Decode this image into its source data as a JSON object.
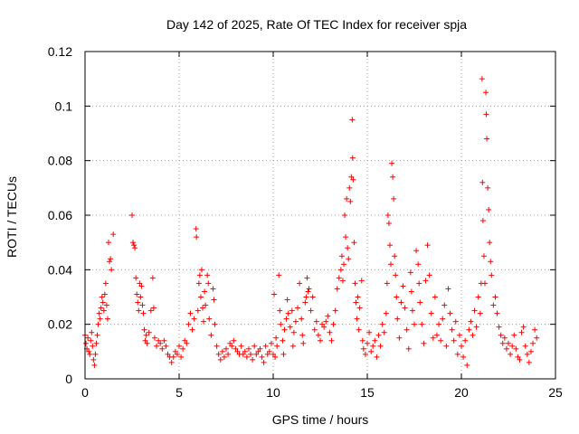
{
  "chart_data": {
    "type": "scatter",
    "title": "Day 142 of 2025, Rate Of TEC Index for receiver spja",
    "xlabel": "GPS time / hours",
    "ylabel": "ROTI / TECUs",
    "xlim": [
      0,
      25
    ],
    "ylim": [
      0,
      0.12
    ],
    "xticks": [
      0,
      5,
      10,
      15,
      20,
      25
    ],
    "xtick_labels": [
      "0",
      "5",
      "10",
      "15",
      "20",
      "25"
    ],
    "yticks": [
      0,
      0.02,
      0.04,
      0.06,
      0.08,
      0.1,
      0.12
    ],
    "ytick_labels": [
      "0",
      "0.02",
      "0.04",
      "0.06",
      "0.08",
      "0.1",
      "0.12"
    ],
    "grid": true,
    "marker": "+",
    "color": "#ff0000",
    "series": [
      {
        "name": "ROTI",
        "points": [
          [
            0.0,
            0.016
          ],
          [
            0.05,
            0.013
          ],
          [
            0.1,
            0.011
          ],
          [
            0.15,
            0.015
          ],
          [
            0.2,
            0.01
          ],
          [
            0.25,
            0.009
          ],
          [
            0.3,
            0.014
          ],
          [
            0.35,
            0.017
          ],
          [
            0.4,
            0.012
          ],
          [
            0.45,
            0.007
          ],
          [
            0.5,
            0.005
          ],
          [
            0.55,
            0.009
          ],
          [
            0.6,
            0.013
          ],
          [
            0.65,
            0.016
          ],
          [
            0.7,
            0.02
          ],
          [
            0.75,
            0.024
          ],
          [
            0.8,
            0.022
          ],
          [
            0.85,
            0.026
          ],
          [
            0.9,
            0.03
          ],
          [
            0.95,
            0.028
          ],
          [
            1.0,
            0.025
          ],
          [
            1.05,
            0.031
          ],
          [
            1.1,
            0.035
          ],
          [
            1.15,
            0.027
          ],
          [
            1.2,
            0.022
          ],
          [
            1.25,
            0.05
          ],
          [
            1.3,
            0.043
          ],
          [
            1.35,
            0.044
          ],
          [
            1.4,
            0.04
          ],
          [
            1.5,
            0.053
          ],
          [
            2.5,
            0.06
          ],
          [
            2.55,
            0.05
          ],
          [
            2.6,
            0.049
          ],
          [
            2.65,
            0.048
          ],
          [
            2.7,
            0.037
          ],
          [
            2.75,
            0.031
          ],
          [
            2.8,
            0.028
          ],
          [
            2.85,
            0.025
          ],
          [
            2.9,
            0.035
          ],
          [
            2.95,
            0.03
          ],
          [
            3.0,
            0.034
          ],
          [
            3.05,
            0.027
          ],
          [
            3.1,
            0.024
          ],
          [
            3.15,
            0.018
          ],
          [
            3.2,
            0.014
          ],
          [
            3.25,
            0.016
          ],
          [
            3.3,
            0.013
          ],
          [
            3.4,
            0.017
          ],
          [
            3.5,
            0.025
          ],
          [
            3.6,
            0.037
          ],
          [
            3.65,
            0.026
          ],
          [
            3.7,
            0.015
          ],
          [
            3.8,
            0.012
          ],
          [
            3.9,
            0.014
          ],
          [
            4.0,
            0.013
          ],
          [
            4.1,
            0.011
          ],
          [
            4.2,
            0.014
          ],
          [
            4.3,
            0.012
          ],
          [
            4.4,
            0.009
          ],
          [
            4.5,
            0.008
          ],
          [
            4.6,
            0.006
          ],
          [
            4.7,
            0.008
          ],
          [
            4.8,
            0.01
          ],
          [
            4.9,
            0.009
          ],
          [
            5.0,
            0.012
          ],
          [
            5.1,
            0.008
          ],
          [
            5.2,
            0.011
          ],
          [
            5.3,
            0.014
          ],
          [
            5.4,
            0.013
          ],
          [
            5.5,
            0.02
          ],
          [
            5.6,
            0.024
          ],
          [
            5.7,
            0.018
          ],
          [
            5.8,
            0.022
          ],
          [
            5.9,
            0.055
          ],
          [
            5.92,
            0.052
          ],
          [
            6.0,
            0.025
          ],
          [
            6.05,
            0.035
          ],
          [
            6.1,
            0.038
          ],
          [
            6.15,
            0.03
          ],
          [
            6.2,
            0.04
          ],
          [
            6.25,
            0.026
          ],
          [
            6.3,
            0.021
          ],
          [
            6.35,
            0.032
          ],
          [
            6.4,
            0.027
          ],
          [
            6.5,
            0.038
          ],
          [
            6.55,
            0.035
          ],
          [
            6.6,
            0.022
          ],
          [
            6.7,
            0.016
          ],
          [
            6.8,
            0.033
          ],
          [
            6.85,
            0.029
          ],
          [
            6.9,
            0.02
          ],
          [
            7.0,
            0.012
          ],
          [
            7.1,
            0.009
          ],
          [
            7.2,
            0.007
          ],
          [
            7.3,
            0.01
          ],
          [
            7.4,
            0.008
          ],
          [
            7.5,
            0.011
          ],
          [
            7.6,
            0.009
          ],
          [
            7.7,
            0.013
          ],
          [
            7.8,
            0.012
          ],
          [
            7.9,
            0.014
          ],
          [
            8.0,
            0.011
          ],
          [
            8.1,
            0.01
          ],
          [
            8.2,
            0.009
          ],
          [
            8.3,
            0.012
          ],
          [
            8.4,
            0.009
          ],
          [
            8.5,
            0.01
          ],
          [
            8.6,
            0.008
          ],
          [
            8.7,
            0.011
          ],
          [
            8.8,
            0.009
          ],
          [
            8.9,
            0.007
          ],
          [
            9.0,
            0.012
          ],
          [
            9.1,
            0.009
          ],
          [
            9.2,
            0.01
          ],
          [
            9.3,
            0.011
          ],
          [
            9.4,
            0.008
          ],
          [
            9.5,
            0.006
          ],
          [
            9.6,
            0.012
          ],
          [
            9.7,
            0.009
          ],
          [
            9.8,
            0.01
          ],
          [
            9.9,
            0.013
          ],
          [
            10.0,
            0.009
          ],
          [
            10.05,
            0.031
          ],
          [
            10.1,
            0.008
          ],
          [
            10.15,
            0.015
          ],
          [
            10.2,
            0.012
          ],
          [
            10.3,
            0.038
          ],
          [
            10.35,
            0.025
          ],
          [
            10.4,
            0.02
          ],
          [
            10.5,
            0.014
          ],
          [
            10.55,
            0.009
          ],
          [
            10.6,
            0.018
          ],
          [
            10.7,
            0.022
          ],
          [
            10.75,
            0.029
          ],
          [
            10.8,
            0.024
          ],
          [
            10.9,
            0.019
          ],
          [
            11.0,
            0.025
          ],
          [
            11.05,
            0.012
          ],
          [
            11.1,
            0.017
          ],
          [
            11.2,
            0.021
          ],
          [
            11.3,
            0.026
          ],
          [
            11.4,
            0.035
          ],
          [
            11.5,
            0.022
          ],
          [
            11.55,
            0.016
          ],
          [
            11.6,
            0.013
          ],
          [
            11.7,
            0.028
          ],
          [
            11.75,
            0.03
          ],
          [
            11.8,
            0.037
          ],
          [
            11.85,
            0.032
          ],
          [
            11.9,
            0.033
          ],
          [
            12.0,
            0.025
          ],
          [
            12.1,
            0.03
          ],
          [
            12.2,
            0.018
          ],
          [
            12.3,
            0.021
          ],
          [
            12.4,
            0.016
          ],
          [
            12.5,
            0.014
          ],
          [
            12.6,
            0.02
          ],
          [
            12.7,
            0.019
          ],
          [
            12.8,
            0.021
          ],
          [
            12.9,
            0.023
          ],
          [
            13.0,
            0.017
          ],
          [
            13.1,
            0.014
          ],
          [
            13.2,
            0.02
          ],
          [
            13.3,
            0.025
          ],
          [
            13.4,
            0.033
          ],
          [
            13.5,
            0.037
          ],
          [
            13.6,
            0.04
          ],
          [
            13.65,
            0.045
          ],
          [
            13.7,
            0.036
          ],
          [
            13.75,
            0.042
          ],
          [
            13.8,
            0.06
          ],
          [
            13.85,
            0.052
          ],
          [
            13.9,
            0.066
          ],
          [
            13.95,
            0.048
          ],
          [
            14.0,
            0.044
          ],
          [
            14.05,
            0.07
          ],
          [
            14.1,
            0.065
          ],
          [
            14.15,
            0.074
          ],
          [
            14.2,
            0.095
          ],
          [
            14.22,
            0.081
          ],
          [
            14.25,
            0.073
          ],
          [
            14.3,
            0.05
          ],
          [
            14.35,
            0.035
          ],
          [
            14.4,
            0.028
          ],
          [
            14.45,
            0.022
          ],
          [
            14.5,
            0.03
          ],
          [
            14.55,
            0.018
          ],
          [
            14.6,
            0.026
          ],
          [
            14.7,
            0.036
          ],
          [
            14.75,
            0.014
          ],
          [
            14.8,
            0.011
          ],
          [
            14.9,
            0.009
          ],
          [
            15.0,
            0.013
          ],
          [
            15.1,
            0.017
          ],
          [
            15.2,
            0.01
          ],
          [
            15.3,
            0.012
          ],
          [
            15.4,
            0.014
          ],
          [
            15.5,
            0.008
          ],
          [
            15.6,
            0.016
          ],
          [
            15.7,
            0.012
          ],
          [
            15.8,
            0.02
          ],
          [
            15.9,
            0.017
          ],
          [
            16.0,
            0.024
          ],
          [
            16.05,
            0.035
          ],
          [
            16.1,
            0.06
          ],
          [
            16.15,
            0.057
          ],
          [
            16.2,
            0.049
          ],
          [
            16.25,
            0.042
          ],
          [
            16.3,
            0.079
          ],
          [
            16.35,
            0.074
          ],
          [
            16.4,
            0.066
          ],
          [
            16.45,
            0.045
          ],
          [
            16.5,
            0.038
          ],
          [
            16.55,
            0.03
          ],
          [
            16.6,
            0.022
          ],
          [
            16.7,
            0.015
          ],
          [
            16.8,
            0.028
          ],
          [
            16.9,
            0.034
          ],
          [
            17.0,
            0.026
          ],
          [
            17.1,
            0.018
          ],
          [
            17.2,
            0.011
          ],
          [
            17.3,
            0.039
          ],
          [
            17.35,
            0.032
          ],
          [
            17.4,
            0.025
          ],
          [
            17.5,
            0.02
          ],
          [
            17.6,
            0.047
          ],
          [
            17.7,
            0.042
          ],
          [
            17.75,
            0.035
          ],
          [
            17.8,
            0.028
          ],
          [
            17.9,
            0.02
          ],
          [
            18.0,
            0.013
          ],
          [
            18.1,
            0.036
          ],
          [
            18.2,
            0.049
          ],
          [
            18.3,
            0.038
          ],
          [
            18.4,
            0.024
          ],
          [
            18.5,
            0.015
          ],
          [
            18.6,
            0.03
          ],
          [
            18.7,
            0.016
          ],
          [
            18.8,
            0.02
          ],
          [
            18.9,
            0.014
          ],
          [
            19.0,
            0.022
          ],
          [
            19.1,
            0.027
          ],
          [
            19.2,
            0.012
          ],
          [
            19.3,
            0.033
          ],
          [
            19.4,
            0.024
          ],
          [
            19.5,
            0.018
          ],
          [
            19.6,
            0.014
          ],
          [
            19.7,
            0.021
          ],
          [
            19.8,
            0.009
          ],
          [
            19.9,
            0.016
          ],
          [
            20.0,
            0.012
          ],
          [
            20.1,
            0.008
          ],
          [
            20.2,
            0.014
          ],
          [
            20.3,
            0.005
          ],
          [
            20.4,
            0.018
          ],
          [
            20.5,
            0.021
          ],
          [
            20.6,
            0.016
          ],
          [
            20.7,
            0.025
          ],
          [
            20.8,
            0.019
          ],
          [
            20.9,
            0.03
          ],
          [
            21.0,
            0.024
          ],
          [
            21.05,
            0.035
          ],
          [
            21.1,
            0.11
          ],
          [
            21.12,
            0.072
          ],
          [
            21.15,
            0.058
          ],
          [
            21.2,
            0.045
          ],
          [
            21.25,
            0.035
          ],
          [
            21.3,
            0.105
          ],
          [
            21.32,
            0.097
          ],
          [
            21.35,
            0.088
          ],
          [
            21.4,
            0.07
          ],
          [
            21.45,
            0.062
          ],
          [
            21.5,
            0.05
          ],
          [
            21.55,
            0.043
          ],
          [
            21.6,
            0.038
          ],
          [
            21.7,
            0.027
          ],
          [
            21.8,
            0.03
          ],
          [
            21.9,
            0.024
          ],
          [
            22.0,
            0.019
          ],
          [
            22.1,
            0.016
          ],
          [
            22.2,
            0.013
          ],
          [
            22.3,
            0.015
          ],
          [
            22.4,
            0.011
          ],
          [
            22.5,
            0.013
          ],
          [
            22.6,
            0.009
          ],
          [
            22.7,
            0.012
          ],
          [
            22.8,
            0.016
          ],
          [
            22.9,
            0.011
          ],
          [
            23.0,
            0.008
          ],
          [
            23.1,
            0.007
          ],
          [
            23.2,
            0.017
          ],
          [
            23.3,
            0.019
          ],
          [
            23.4,
            0.012
          ],
          [
            23.5,
            0.009
          ],
          [
            23.6,
            0.006
          ],
          [
            23.7,
            0.01
          ],
          [
            23.8,
            0.013
          ],
          [
            23.9,
            0.018
          ],
          [
            24.0,
            0.015
          ]
        ]
      }
    ]
  }
}
